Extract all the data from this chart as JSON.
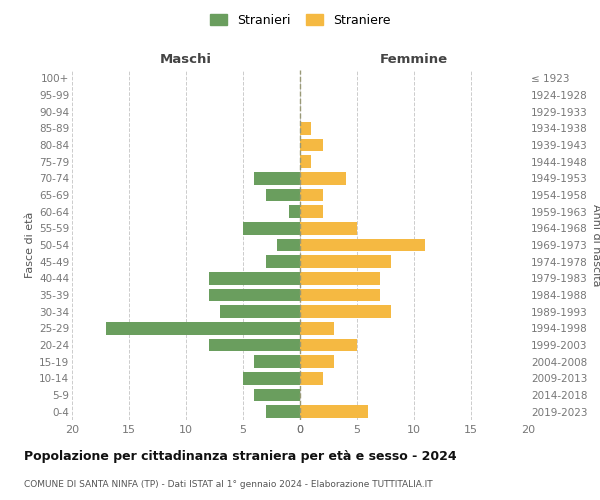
{
  "age_groups": [
    "0-4",
    "5-9",
    "10-14",
    "15-19",
    "20-24",
    "25-29",
    "30-34",
    "35-39",
    "40-44",
    "45-49",
    "50-54",
    "55-59",
    "60-64",
    "65-69",
    "70-74",
    "75-79",
    "80-84",
    "85-89",
    "90-94",
    "95-99",
    "100+"
  ],
  "birth_years": [
    "2019-2023",
    "2014-2018",
    "2009-2013",
    "2004-2008",
    "1999-2003",
    "1994-1998",
    "1989-1993",
    "1984-1988",
    "1979-1983",
    "1974-1978",
    "1969-1973",
    "1964-1968",
    "1959-1963",
    "1954-1958",
    "1949-1953",
    "1944-1948",
    "1939-1943",
    "1934-1938",
    "1929-1933",
    "1924-1928",
    "≤ 1923"
  ],
  "maschi": [
    3,
    4,
    5,
    4,
    8,
    17,
    7,
    8,
    8,
    3,
    2,
    5,
    1,
    3,
    4,
    0,
    0,
    0,
    0,
    0,
    0
  ],
  "femmine": [
    6,
    0,
    2,
    3,
    5,
    3,
    8,
    7,
    7,
    8,
    11,
    5,
    2,
    2,
    4,
    1,
    2,
    1,
    0,
    0,
    0
  ],
  "color_maschi": "#6a9e5e",
  "color_femmine": "#f5b942",
  "title": "Popolazione per cittadinanza straniera per età e sesso - 2024",
  "subtitle": "COMUNE DI SANTA NINFA (TP) - Dati ISTAT al 1° gennaio 2024 - Elaborazione TUTTITALIA.IT",
  "label_maschi": "Maschi",
  "label_femmine": "Femmine",
  "ylabel_left": "Fasce di età",
  "ylabel_right": "Anni di nascita",
  "legend_maschi": "Stranieri",
  "legend_femmine": "Straniere",
  "xlim": 20,
  "background_color": "#ffffff",
  "grid_color": "#cccccc",
  "tick_color": "#777777",
  "bar_height": 0.75
}
